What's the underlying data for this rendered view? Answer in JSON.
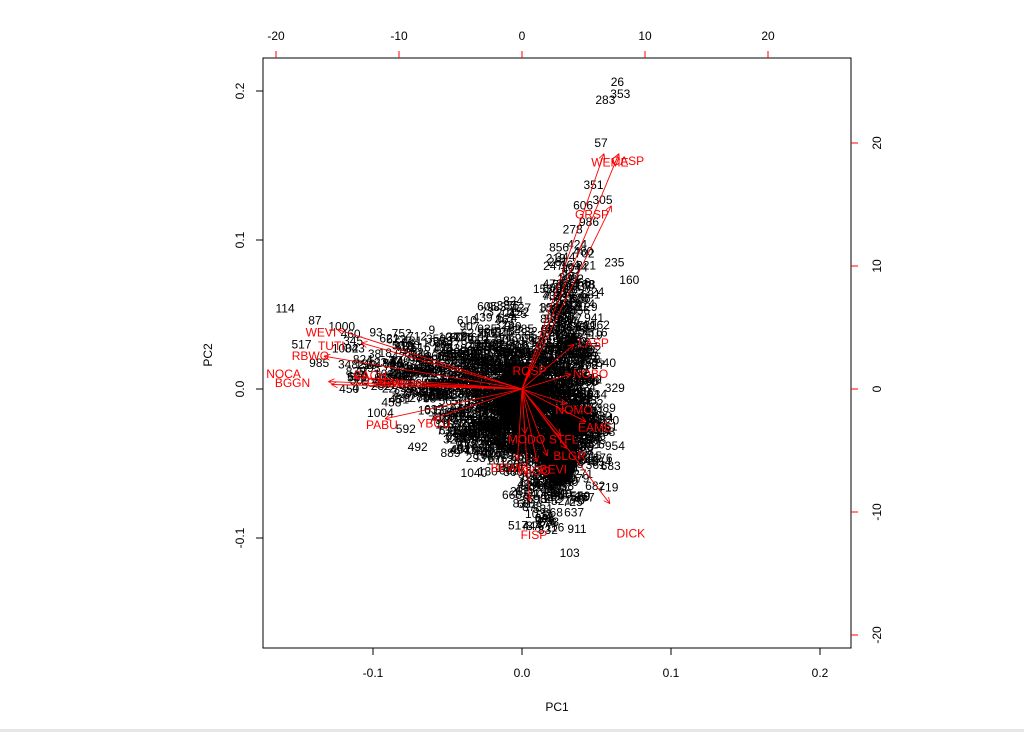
{
  "chart_data": {
    "type": "scatter",
    "subtype": "pca-biplot",
    "title": "",
    "xlabel": "PC1",
    "ylabel": "PC2",
    "xlim": [
      -0.175,
      0.22
    ],
    "ylim": [
      -0.175,
      0.22
    ],
    "grid": false,
    "legend": null,
    "axes": {
      "bottom": {
        "label": "PC1",
        "ticks": [
          -0.1,
          0.0,
          0.1,
          0.2
        ],
        "tick_labels": [
          "-0.1",
          "0.0",
          "0.1",
          "0.2"
        ],
        "color": "#000000"
      },
      "left": {
        "label": "PC2",
        "ticks": [
          -0.1,
          0.0,
          0.1,
          0.2
        ],
        "tick_labels": [
          "-0.1",
          "0.0",
          "0.1",
          "0.2"
        ],
        "color": "#000000"
      },
      "top": {
        "label": "",
        "ticks": [
          -20,
          -10,
          0,
          10,
          20
        ],
        "tick_labels": [
          "-20",
          "-10",
          "0",
          "10",
          "20"
        ],
        "tick_color": "#ff0000"
      },
      "right": {
        "label": "",
        "ticks": [
          -20,
          -10,
          0,
          10,
          20
        ],
        "tick_labels": [
          "-20",
          "-10",
          "0",
          "10",
          "20"
        ],
        "tick_color": "#ff0000"
      }
    },
    "colors": {
      "points": "#000000",
      "loadings": "#ff0000",
      "frame": "#000000"
    },
    "observations": [
      {
        "label": "26",
        "pc1": 0.064,
        "pc2": 0.206
      },
      {
        "label": "353",
        "pc1": 0.066,
        "pc2": 0.198
      },
      {
        "label": "283",
        "pc1": 0.056,
        "pc2": 0.194
      },
      {
        "label": "57",
        "pc1": 0.053,
        "pc2": 0.165
      },
      {
        "label": "351",
        "pc1": 0.048,
        "pc2": 0.137
      },
      {
        "label": "305",
        "pc1": 0.054,
        "pc2": 0.127
      },
      {
        "label": "606",
        "pc1": 0.041,
        "pc2": 0.123
      },
      {
        "label": "986",
        "pc1": 0.045,
        "pc2": 0.112
      },
      {
        "label": "278",
        "pc1": 0.034,
        "pc2": 0.107
      },
      {
        "label": "424",
        "pc1": 0.037,
        "pc2": 0.097
      },
      {
        "label": "702",
        "pc1": 0.042,
        "pc2": 0.091
      },
      {
        "label": "221",
        "pc1": 0.043,
        "pc2": 0.083
      },
      {
        "label": "235",
        "pc1": 0.062,
        "pc2": 0.085
      },
      {
        "label": "160",
        "pc1": 0.072,
        "pc2": 0.073
      },
      {
        "label": "153",
        "pc1": 0.014,
        "pc2": 0.067
      },
      {
        "label": "163",
        "pc1": 0.042,
        "pc2": 0.07
      },
      {
        "label": "328",
        "pc1": 0.038,
        "pc2": 0.061
      },
      {
        "label": "129",
        "pc1": 0.044,
        "pc2": 0.055
      },
      {
        "label": "1062",
        "pc1": 0.05,
        "pc2": 0.043
      },
      {
        "label": "653",
        "pc1": 0.008,
        "pc2": 0.036
      },
      {
        "label": "610",
        "pc1": -0.037,
        "pc2": 0.046
      },
      {
        "label": "114",
        "pc1": -0.159,
        "pc2": 0.054
      },
      {
        "label": "87",
        "pc1": -0.139,
        "pc2": 0.046
      },
      {
        "label": "1000",
        "pc1": -0.121,
        "pc2": 0.042
      },
      {
        "label": "460",
        "pc1": -0.115,
        "pc2": 0.037
      },
      {
        "label": "93",
        "pc1": -0.098,
        "pc2": 0.038
      },
      {
        "label": "621",
        "pc1": -0.089,
        "pc2": 0.034
      },
      {
        "label": "568",
        "pc1": -0.079,
        "pc2": 0.031
      },
      {
        "label": "616",
        "pc1": -0.068,
        "pc2": 0.028
      },
      {
        "label": "556",
        "pc1": -0.044,
        "pc2": 0.023
      },
      {
        "label": "517",
        "pc1": -0.148,
        "pc2": 0.03
      },
      {
        "label": "450",
        "pc1": -0.116,
        "pc2": 0.0
      },
      {
        "label": "544",
        "pc1": -0.094,
        "pc2": 0.004
      },
      {
        "label": "1004",
        "pc1": -0.095,
        "pc2": -0.016
      },
      {
        "label": "592",
        "pc1": -0.078,
        "pc2": -0.027
      },
      {
        "label": "492",
        "pc1": -0.07,
        "pc2": -0.039
      },
      {
        "label": "494",
        "pc1": -0.042,
        "pc2": -0.041
      },
      {
        "label": "1012",
        "pc1": -0.015,
        "pc2": -0.048
      },
      {
        "label": "719",
        "pc1": 0.058,
        "pc2": -0.066
      },
      {
        "label": "571",
        "pc1": 0.007,
        "pc2": -0.074
      },
      {
        "label": "725",
        "pc1": 0.034,
        "pc2": -0.076
      },
      {
        "label": "1032",
        "pc1": 0.011,
        "pc2": -0.084
      },
      {
        "label": "637",
        "pc1": 0.035,
        "pc2": -0.083
      },
      {
        "label": "103",
        "pc1": 0.032,
        "pc2": -0.11
      },
      {
        "label": "215",
        "pc1": 0.047,
        "pc2": -0.045
      },
      {
        "label": "271",
        "pc1": 0.041,
        "pc2": -0.057
      },
      {
        "label": "1058",
        "pc1": 0.026,
        "pc2": -0.065
      },
      {
        "label": "626",
        "pc1": 0.021,
        "pc2": -0.071
      }
    ],
    "loadings": [
      {
        "label": "WEME",
        "arrow_end": [
          0.055,
          0.158
        ],
        "label_pos": [
          0.059,
          0.152
        ]
      },
      {
        "label": "CASP",
        "arrow_end": [
          0.065,
          0.158
        ],
        "label_pos": [
          0.071,
          0.153
        ]
      },
      {
        "label": "GRSP",
        "arrow_end": [
          0.06,
          0.123
        ],
        "label_pos": [
          0.047,
          0.117
        ]
      },
      {
        "label": "LASP",
        "arrow_end": [
          0.035,
          0.03
        ],
        "label_pos": [
          0.048,
          0.031
        ]
      },
      {
        "label": "NOBO",
        "arrow_end": [
          0.033,
          0.01
        ],
        "label_pos": [
          0.046,
          0.01
        ]
      },
      {
        "label": "ROSP",
        "arrow_end": [
          0.005,
          0.012
        ],
        "label_pos": [
          0.005,
          0.012
        ]
      },
      {
        "label": "NOMO",
        "arrow_end": [
          0.03,
          -0.01
        ],
        "label_pos": [
          0.035,
          -0.014
        ]
      },
      {
        "label": "EAME",
        "arrow_end": [
          0.043,
          -0.022
        ],
        "label_pos": [
          0.049,
          -0.026
        ]
      },
      {
        "label": "MODO",
        "arrow_end": [
          0.002,
          -0.03
        ],
        "label_pos": [
          0.003,
          -0.034
        ]
      },
      {
        "label": "STFL",
        "arrow_end": [
          0.026,
          -0.031
        ],
        "label_pos": [
          0.028,
          -0.034
        ]
      },
      {
        "label": "BLGR",
        "arrow_end": [
          0.03,
          -0.04
        ],
        "label_pos": [
          0.032,
          -0.045
        ]
      },
      {
        "label": "BEWR",
        "arrow_end": [
          -0.003,
          -0.048
        ],
        "label_pos": [
          -0.009,
          -0.053
        ]
      },
      {
        "label": "BEVI",
        "arrow_end": [
          0.017,
          -0.045
        ],
        "label_pos": [
          0.021,
          -0.054
        ]
      },
      {
        "label": "WIGO",
        "arrow_end": [
          0.01,
          -0.049
        ],
        "label_pos": [
          0.008,
          -0.055
        ]
      },
      {
        "label": "FISP",
        "arrow_end": [
          0.005,
          -0.075
        ],
        "label_pos": [
          0.008,
          -0.098
        ]
      },
      {
        "label": "DICK",
        "arrow_end": [
          0.059,
          -0.077
        ],
        "label_pos": [
          0.073,
          -0.097
        ]
      },
      {
        "label": "NOCA",
        "arrow_end": [
          -0.13,
          0.005
        ],
        "label_pos": [
          -0.16,
          0.01
        ]
      },
      {
        "label": "BGGN",
        "arrow_end": [
          -0.128,
          0.003
        ],
        "label_pos": [
          -0.154,
          0.004
        ]
      },
      {
        "label": "TUTI",
        "arrow_end": [
          -0.108,
          0.031
        ],
        "label_pos": [
          -0.128,
          0.029
        ]
      },
      {
        "label": "WEVI",
        "arrow_end": [
          -0.124,
          0.04
        ],
        "label_pos": [
          -0.135,
          0.038
        ]
      },
      {
        "label": "RBWO",
        "arrow_end": [
          -0.133,
          0.022
        ],
        "label_pos": [
          -0.142,
          0.022
        ]
      },
      {
        "label": "CACH",
        "arrow_end": [
          -0.112,
          0.008
        ],
        "label_pos": [
          -0.102,
          0.009
        ]
      },
      {
        "label": "CARW",
        "arrow_end": [
          -0.096,
          0.005
        ],
        "label_pos": [
          -0.092,
          0.004
        ]
      },
      {
        "label": "PABU",
        "arrow_end": [
          -0.092,
          -0.02
        ],
        "label_pos": [
          -0.094,
          -0.024
        ]
      },
      {
        "label": "YBCU",
        "arrow_end": [
          -0.06,
          -0.02
        ],
        "label_pos": [
          -0.059,
          -0.023
        ]
      }
    ]
  }
}
